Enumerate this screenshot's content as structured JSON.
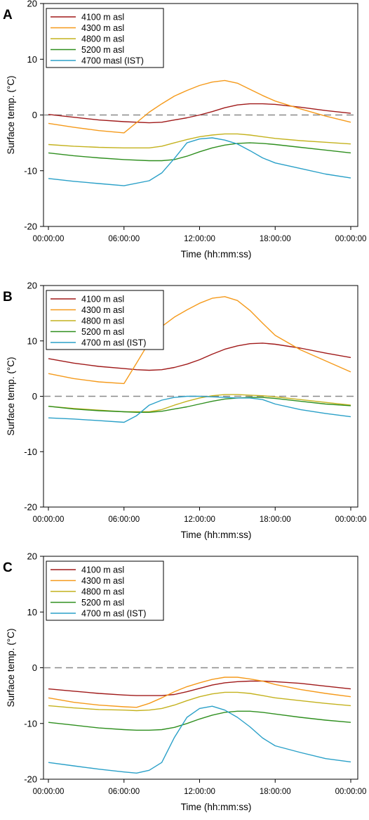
{
  "chart_data": [
    {
      "type": "line",
      "panel_label": "A",
      "xlabel": "Time (hh:mm:ss)",
      "ylabel": "Surface temp. (°C)",
      "x_ticks": [
        "00:00:00",
        "06:00:00",
        "12:00:00",
        "18:00:00",
        "00:00:00"
      ],
      "xlim": [
        0,
        24
      ],
      "ylim": [
        -20,
        20
      ],
      "y_ticks": [
        -20,
        -10,
        0,
        10,
        20
      ],
      "reference_line": 0,
      "legend_position": "top-left",
      "x": [
        0,
        2,
        4,
        6,
        8,
        9,
        10,
        11,
        12,
        13,
        14,
        15,
        16,
        17,
        18,
        20,
        22,
        24
      ],
      "series": [
        {
          "name": "4100 m asl",
          "color": "#a01a1a",
          "values": [
            0.1,
            -0.4,
            -0.9,
            -1.2,
            -1.4,
            -1.3,
            -0.9,
            -0.5,
            0.0,
            0.6,
            1.3,
            1.8,
            2.0,
            2.0,
            1.9,
            1.4,
            0.8,
            0.3
          ]
        },
        {
          "name": "4300 m asl",
          "color": "#f59a1b",
          "values": [
            -1.5,
            -2.2,
            -2.8,
            -3.2,
            0.5,
            2.0,
            3.4,
            4.4,
            5.3,
            5.9,
            6.2,
            5.7,
            4.6,
            3.5,
            2.5,
            1.1,
            -0.2,
            -1.3
          ]
        },
        {
          "name": "4800 m asl",
          "color": "#c4b21e",
          "values": [
            -5.3,
            -5.6,
            -5.8,
            -5.9,
            -5.9,
            -5.6,
            -5.0,
            -4.4,
            -3.9,
            -3.6,
            -3.4,
            -3.4,
            -3.6,
            -3.9,
            -4.2,
            -4.6,
            -4.9,
            -5.2
          ]
        },
        {
          "name": "5200 m asl",
          "color": "#2f8f1f",
          "values": [
            -6.8,
            -7.3,
            -7.7,
            -8.0,
            -8.2,
            -8.2,
            -8.0,
            -7.4,
            -6.6,
            -5.9,
            -5.4,
            -5.1,
            -5.0,
            -5.1,
            -5.3,
            -5.8,
            -6.3,
            -6.8
          ]
        },
        {
          "name": "4700 masl (IST)",
          "color": "#2aa0c8",
          "values": [
            -11.4,
            -11.9,
            -12.3,
            -12.7,
            -11.8,
            -10.4,
            -7.8,
            -5.0,
            -4.3,
            -4.1,
            -4.5,
            -5.2,
            -6.4,
            -7.7,
            -8.6,
            -9.6,
            -10.6,
            -11.3
          ]
        }
      ]
    },
    {
      "type": "line",
      "panel_label": "B",
      "xlabel": "Time (hh:mm:ss)",
      "ylabel": "Surface temp. (°C)",
      "x_ticks": [
        "00:00:00",
        "06:00:00",
        "12:00:00",
        "18:00:00",
        "00:00:00"
      ],
      "xlim": [
        0,
        24
      ],
      "ylim": [
        -20,
        20
      ],
      "y_ticks": [
        -20,
        -10,
        0,
        10,
        20
      ],
      "reference_line": 0,
      "legend_position": "top-left",
      "x": [
        0,
        2,
        4,
        6,
        7,
        8,
        9,
        10,
        11,
        12,
        13,
        14,
        15,
        16,
        17,
        18,
        20,
        22,
        24
      ],
      "series": [
        {
          "name": "4100 m asl",
          "color": "#a01a1a",
          "values": [
            6.8,
            6.0,
            5.4,
            5.0,
            4.8,
            4.7,
            4.8,
            5.2,
            5.8,
            6.6,
            7.6,
            8.5,
            9.1,
            9.5,
            9.6,
            9.4,
            8.7,
            7.8,
            7.0
          ]
        },
        {
          "name": "4300 m asl",
          "color": "#f59a1b",
          "values": [
            4.1,
            3.2,
            2.6,
            2.3,
            6.0,
            9.8,
            12.6,
            14.3,
            15.6,
            16.8,
            17.7,
            18.0,
            17.3,
            15.5,
            13.2,
            11.0,
            8.4,
            6.4,
            4.4
          ]
        },
        {
          "name": "4800 m asl",
          "color": "#c4b21e",
          "values": [
            -1.8,
            -2.2,
            -2.5,
            -2.8,
            -2.8,
            -2.8,
            -2.4,
            -1.6,
            -0.9,
            -0.3,
            0.1,
            0.3,
            0.3,
            0.2,
            0.1,
            -0.1,
            -0.6,
            -1.1,
            -1.6
          ]
        },
        {
          "name": "5200 m asl",
          "color": "#2f8f1f",
          "values": [
            -1.8,
            -2.3,
            -2.6,
            -2.8,
            -2.9,
            -2.9,
            -2.7,
            -2.3,
            -1.9,
            -1.4,
            -0.9,
            -0.5,
            -0.3,
            -0.2,
            -0.2,
            -0.4,
            -0.9,
            -1.4,
            -1.7
          ]
        },
        {
          "name": "4700 m asl (IST)",
          "color": "#2aa0c8",
          "values": [
            -3.9,
            -4.1,
            -4.4,
            -4.7,
            -3.5,
            -1.6,
            -0.7,
            -0.2,
            0.0,
            0.0,
            -0.1,
            -0.2,
            -0.3,
            -0.3,
            -0.6,
            -1.4,
            -2.4,
            -3.1,
            -3.7
          ]
        }
      ]
    },
    {
      "type": "line",
      "panel_label": "C",
      "xlabel": "Time (hh:mm:ss)",
      "ylabel": "Surface temp. (°C)",
      "x_ticks": [
        "00:00:00",
        "06:00:00",
        "12:00:00",
        "18:00:00",
        "00:00:00"
      ],
      "xlim": [
        0,
        24
      ],
      "ylim": [
        -20,
        20
      ],
      "y_ticks": [
        -20,
        -10,
        0,
        10,
        20
      ],
      "reference_line": 0,
      "legend_position": "top-left",
      "x": [
        0,
        2,
        4,
        6,
        7,
        8,
        9,
        10,
        11,
        12,
        13,
        14,
        15,
        16,
        17,
        18,
        20,
        22,
        24
      ],
      "series": [
        {
          "name": "4100 m asl",
          "color": "#a01a1a",
          "values": [
            -3.8,
            -4.2,
            -4.6,
            -4.9,
            -5.0,
            -5.0,
            -5.0,
            -4.8,
            -4.3,
            -3.7,
            -3.1,
            -2.7,
            -2.5,
            -2.4,
            -2.4,
            -2.5,
            -2.8,
            -3.3,
            -3.8
          ]
        },
        {
          "name": "4300 m asl",
          "color": "#f59a1b",
          "values": [
            -5.4,
            -6.2,
            -6.7,
            -7.0,
            -7.1,
            -6.4,
            -5.4,
            -4.3,
            -3.4,
            -2.7,
            -2.1,
            -1.7,
            -1.7,
            -2.0,
            -2.4,
            -3.0,
            -3.9,
            -4.6,
            -5.2
          ]
        },
        {
          "name": "4800 m asl",
          "color": "#c4b21e",
          "values": [
            -6.8,
            -7.2,
            -7.5,
            -7.6,
            -7.7,
            -7.6,
            -7.3,
            -6.7,
            -5.9,
            -5.2,
            -4.7,
            -4.4,
            -4.4,
            -4.6,
            -5.0,
            -5.4,
            -5.9,
            -6.4,
            -6.8
          ]
        },
        {
          "name": "5200 m asl",
          "color": "#2f8f1f",
          "values": [
            -9.8,
            -10.3,
            -10.8,
            -11.1,
            -11.2,
            -11.2,
            -11.1,
            -10.7,
            -10.0,
            -9.2,
            -8.5,
            -8.0,
            -7.8,
            -7.8,
            -8.0,
            -8.3,
            -8.9,
            -9.4,
            -9.8
          ]
        },
        {
          "name": "4700 m asl (IST)",
          "color": "#2aa0c8",
          "values": [
            -17.0,
            -17.6,
            -18.2,
            -18.7,
            -18.9,
            -18.4,
            -17.0,
            -12.5,
            -8.9,
            -7.3,
            -6.9,
            -7.6,
            -8.9,
            -10.6,
            -12.6,
            -14.0,
            -15.2,
            -16.3,
            -16.9
          ]
        }
      ]
    }
  ]
}
